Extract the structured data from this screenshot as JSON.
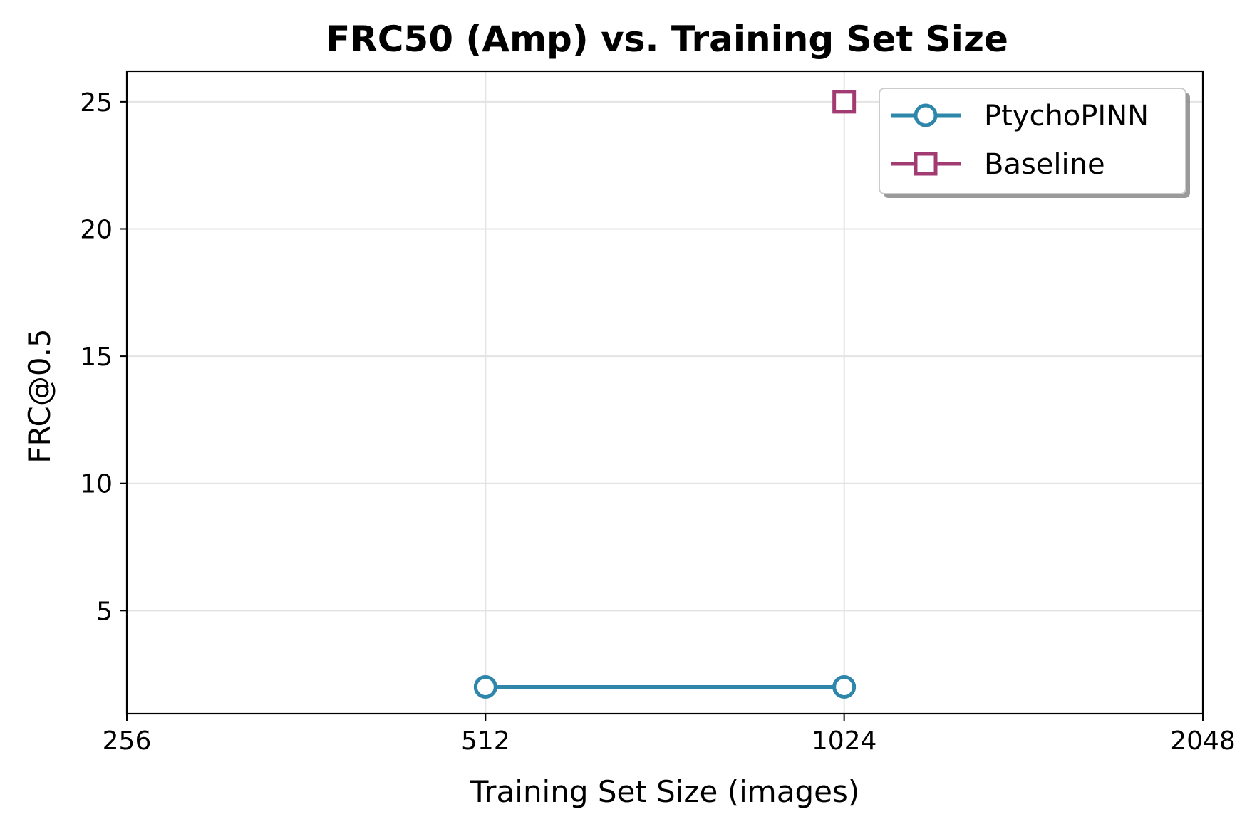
{
  "chart_data": {
    "type": "line",
    "title": "FRC50 (Amp) vs. Training Set Size",
    "xlabel": "Training Set Size (images)",
    "ylabel": "FRC@0.5",
    "x_scale": "log2",
    "xlim": [
      256,
      2048
    ],
    "ylim": [
      0.95,
      26.2
    ],
    "x_ticks": [
      256,
      512,
      1024,
      2048
    ],
    "x_tick_labels": [
      "256",
      "512",
      "1024",
      "2048"
    ],
    "y_ticks": [
      5,
      10,
      15,
      20,
      25
    ],
    "y_tick_labels": [
      "5",
      "10",
      "15",
      "20",
      "25"
    ],
    "grid": true,
    "legend_position": "top-right",
    "series": [
      {
        "name": "PtychoPINN",
        "color": "#2e86ab",
        "marker": "circle",
        "x": [
          512,
          1024
        ],
        "y": [
          2,
          2
        ]
      },
      {
        "name": "Baseline",
        "color": "#a23b72",
        "marker": "square",
        "x": [
          1024
        ],
        "y": [
          25
        ]
      }
    ]
  }
}
